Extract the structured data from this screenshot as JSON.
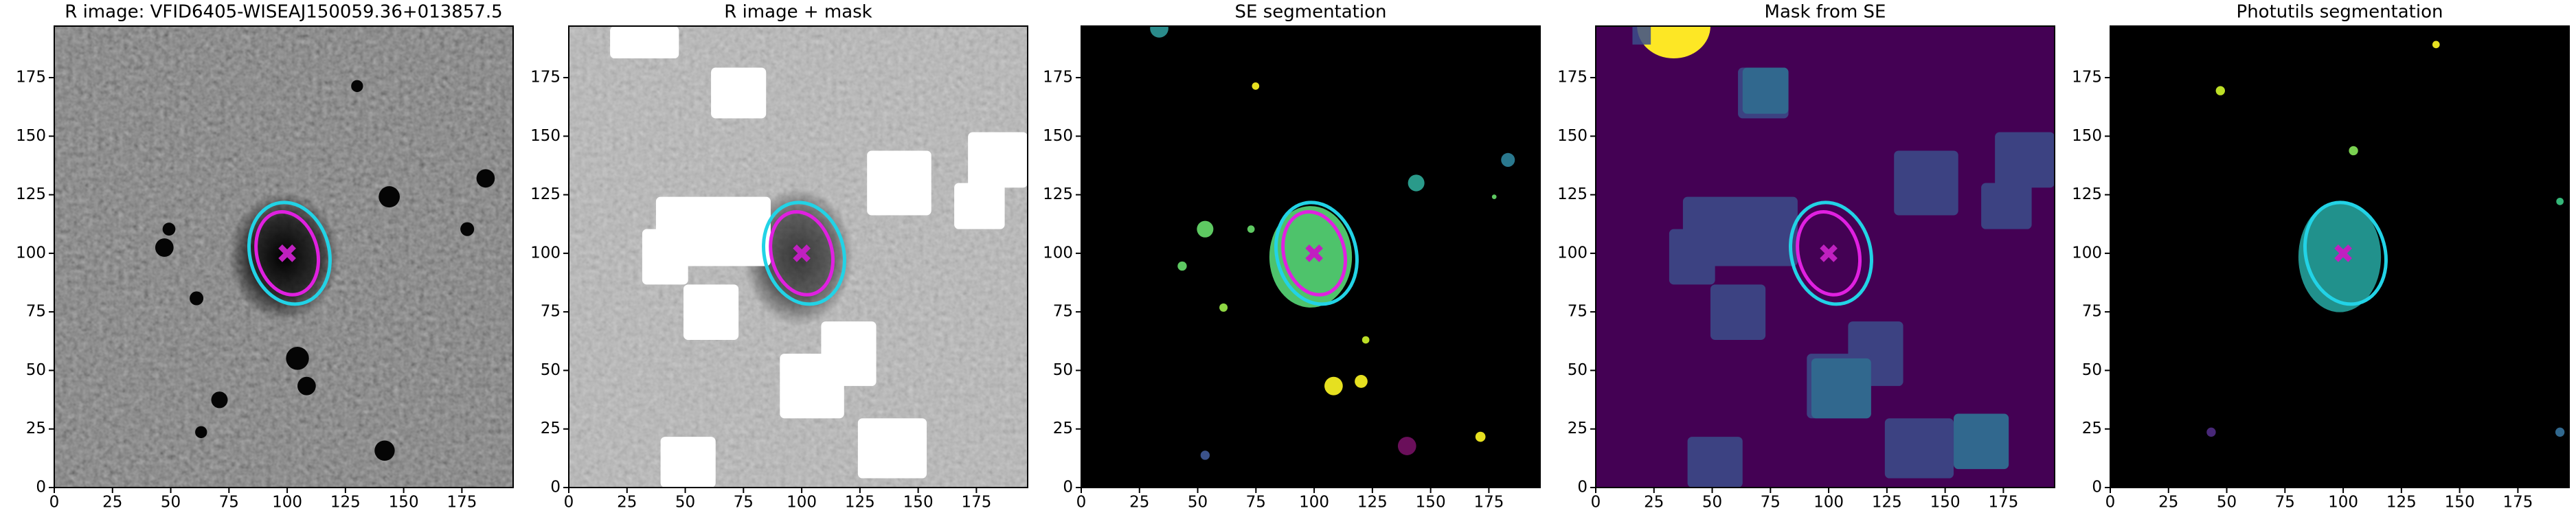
{
  "chart_data": [
    {
      "type": "image",
      "title": "R image: VFID6405-WISEAJ150059.36+013857.5",
      "background": "#4a4a4a",
      "xlim": [
        0,
        197
      ],
      "ylim": [
        0,
        197
      ],
      "xticks": [
        0,
        25,
        50,
        75,
        100,
        125,
        150,
        175
      ],
      "yticks": [
        0,
        25,
        50,
        75,
        100,
        125,
        150,
        175
      ],
      "ellipses": [
        {
          "color": "#22d3e6",
          "cx": 101,
          "cy": 100,
          "rx": 17,
          "ry": 22,
          "angle": 15
        },
        {
          "color": "#e020e0",
          "cx": 100,
          "cy": 100,
          "rx": 13,
          "ry": 18,
          "angle": 15
        }
      ],
      "marker": {
        "x": 100,
        "y": 100,
        "color": "#c020c0"
      }
    },
    {
      "type": "image",
      "title": "R image + mask",
      "background": "#b8b8b8",
      "xlim": [
        0,
        197
      ],
      "ylim": [
        0,
        197
      ],
      "xticks": [
        0,
        25,
        50,
        75,
        100,
        125,
        150,
        175
      ],
      "yticks": [
        0,
        25,
        50,
        75,
        100,
        125,
        150,
        175
      ],
      "ellipses": [
        {
          "color": "#22d3e6",
          "cx": 101,
          "cy": 100,
          "rx": 17,
          "ry": 22,
          "angle": 15
        },
        {
          "color": "#e020e0",
          "cx": 100,
          "cy": 100,
          "rx": 13,
          "ry": 18,
          "angle": 15
        }
      ],
      "marker": {
        "x": 100,
        "y": 100,
        "color": "#c020c0"
      }
    },
    {
      "type": "image",
      "title": "SE segmentation",
      "background": "#000000",
      "xlim": [
        0,
        197
      ],
      "ylim": [
        0,
        197
      ],
      "xticks": [
        0,
        25,
        50,
        75,
        100,
        125,
        150,
        175
      ],
      "yticks": [
        0,
        25,
        50,
        75,
        100,
        125,
        150,
        175
      ],
      "ellipses": [
        {
          "color": "#22d3e6",
          "cx": 101,
          "cy": 100,
          "rx": 17,
          "ry": 22,
          "angle": 15
        },
        {
          "color": "#e020e0",
          "cx": 100,
          "cy": 100,
          "rx": 13,
          "ry": 18,
          "angle": 15
        }
      ],
      "marker": {
        "x": 100,
        "y": 100,
        "color": "#c020c0"
      }
    },
    {
      "type": "image",
      "title": "Mask from SE",
      "background": "#440154",
      "xlim": [
        0,
        197
      ],
      "ylim": [
        0,
        197
      ],
      "xticks": [
        0,
        25,
        50,
        75,
        100,
        125,
        150,
        175
      ],
      "yticks": [
        0,
        25,
        50,
        75,
        100,
        125,
        150,
        175
      ],
      "ellipses": [
        {
          "color": "#22d3e6",
          "cx": 101,
          "cy": 100,
          "rx": 17,
          "ry": 22,
          "angle": 15
        },
        {
          "color": "#e020e0",
          "cx": 100,
          "cy": 100,
          "rx": 13,
          "ry": 18,
          "angle": 15
        }
      ],
      "marker": {
        "x": 100,
        "y": 100,
        "color": "#c020c0"
      }
    },
    {
      "type": "image",
      "title": "Photutils segmentation",
      "background": "#000000",
      "xlim": [
        0,
        197
      ],
      "ylim": [
        0,
        197
      ],
      "xticks": [
        0,
        25,
        50,
        75,
        100,
        125,
        150,
        175
      ],
      "yticks": [
        0,
        25,
        50,
        75,
        100,
        125,
        150,
        175
      ],
      "ellipses": [
        {
          "color": "#22d3e6",
          "cx": 101,
          "cy": 100,
          "rx": 17,
          "ry": 22,
          "angle": 15
        }
      ],
      "marker": {
        "x": 100,
        "y": 100,
        "color": "#c020c0"
      }
    }
  ]
}
